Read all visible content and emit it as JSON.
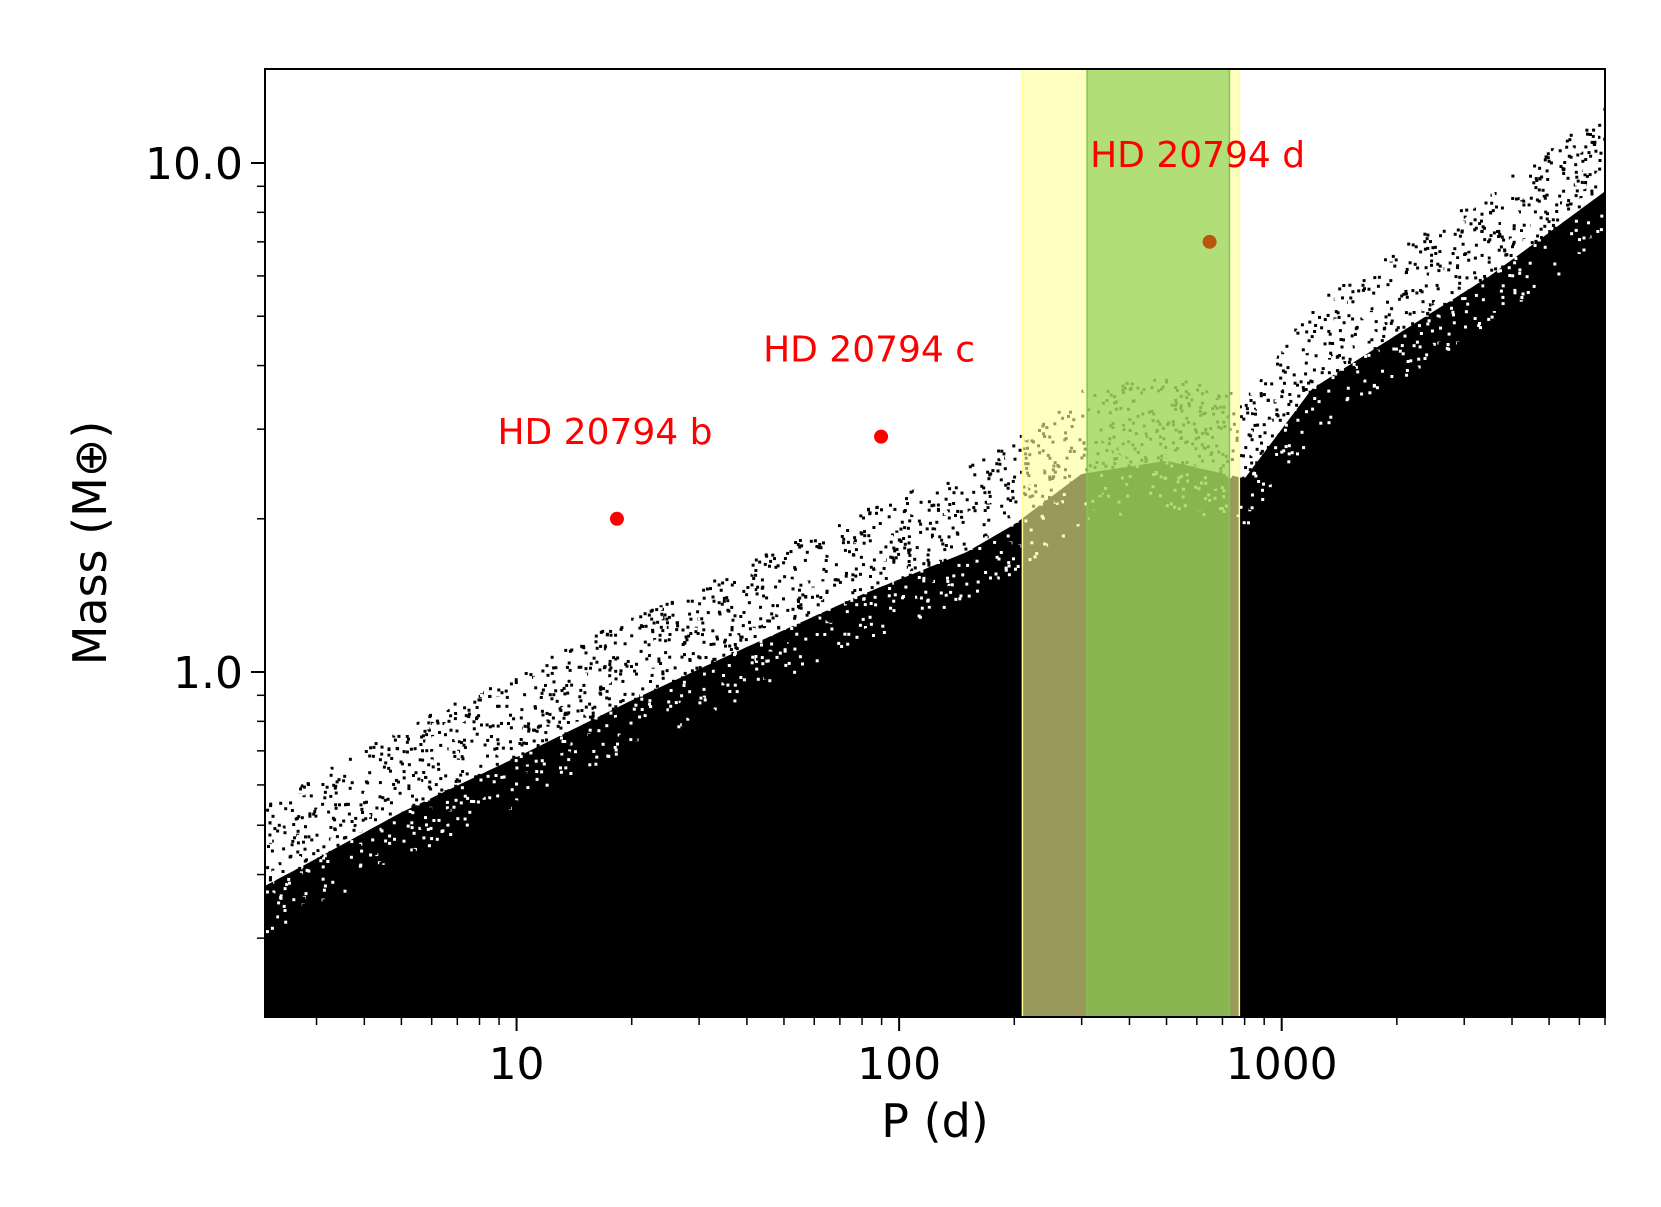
{
  "chart_data": {
    "type": "scatter",
    "xlabel": "P (d)",
    "ylabel": "Mass (M⊕)",
    "xscale": "log",
    "yscale": "log",
    "xlim": [
      2.2,
      7000
    ],
    "ylim": [
      0.21,
      15.3
    ],
    "x_ticks": [
      {
        "value": 10,
        "label": "10"
      },
      {
        "value": 100,
        "label": "100"
      },
      {
        "value": 1000,
        "label": "1000"
      }
    ],
    "y_ticks": [
      {
        "value": 1.0,
        "label": "1.0"
      },
      {
        "value": 10.0,
        "label": "10.0"
      }
    ],
    "grid": false,
    "colors": {
      "detection_limit": "#000000",
      "planet": "#ff0000",
      "planet_in_zone": "#b8560e",
      "optimistic_hz": "#ffff99",
      "conservative_hz": "#7fc84a"
    },
    "detection_limit_boundary": {
      "description_note": "",
      "period": [
        2.2,
        3,
        5,
        10,
        20,
        40,
        80,
        150,
        200,
        300,
        500,
        800,
        1200,
        2000,
        3500,
        5000,
        7000
      ],
      "mass": [
        0.38,
        0.43,
        0.53,
        0.68,
        0.88,
        1.12,
        1.42,
        1.72,
        1.95,
        2.45,
        2.6,
        2.4,
        3.6,
        4.6,
        6.0,
        7.3,
        8.8
      ]
    },
    "bands": [
      {
        "type": "optimistic",
        "period_range": [
          210,
          775
        ]
      },
      {
        "type": "conservative",
        "period_range": [
          310,
          730
        ]
      }
    ],
    "planets": [
      {
        "name": "HD 20794 b",
        "period": 18.3,
        "mass": 2.0
      },
      {
        "name": "HD 20794 c",
        "period": 89.7,
        "mass": 2.9
      },
      {
        "name": "HD 20794 d",
        "period": 648,
        "mass": 7.0
      }
    ]
  }
}
